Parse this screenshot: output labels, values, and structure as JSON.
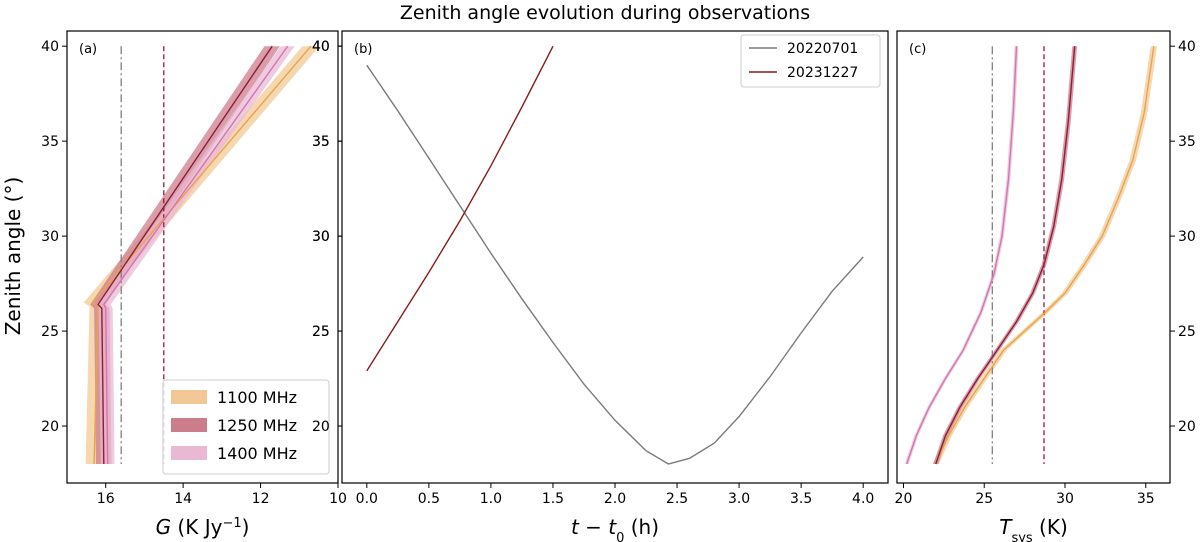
{
  "figure": {
    "title": "Zenith angle evolution during observations",
    "shared_ylabel": "Zenith angle (°)"
  },
  "chart_data": [
    {
      "panel": "(a)",
      "type": "line",
      "xlabel_html": "G (K Jy⁻¹)",
      "ylabel": "Zenith angle (°)",
      "xlim": [
        17.0,
        10.0
      ],
      "ylim": [
        17.0,
        40.8
      ],
      "xticks": [
        16,
        14,
        12,
        10
      ],
      "yticks": [
        20,
        25,
        30,
        35,
        40
      ],
      "legend": {
        "position": "lower-right",
        "entries": [
          "1100 MHz",
          "1250 MHz",
          "1400 MHz"
        ]
      },
      "series": [
        {
          "name": "1100 MHz",
          "color": "#e8a44a",
          "band_color": "#f2c996",
          "band_halfwidth": 0.22,
          "x": [
            16.3,
            16.2,
            16.35,
            10.7
          ],
          "y": [
            18.0,
            26.3,
            26.5,
            40.0
          ]
        },
        {
          "name": "1250 MHz",
          "color": "#8e1d3a",
          "band_color": "#cc7d8c",
          "band_halfwidth": 0.2,
          "x": [
            16.05,
            16.1,
            16.2,
            11.7
          ],
          "y": [
            18.0,
            26.2,
            26.4,
            40.0
          ]
        },
        {
          "name": "1400 MHz",
          "color": "#d277b0",
          "band_color": "#e9b9d4",
          "band_halfwidth": 0.18,
          "x": [
            15.95,
            16.0,
            16.05,
            11.3
          ],
          "y": [
            18.0,
            26.2,
            26.4,
            40.0
          ]
        }
      ],
      "vlines": [
        {
          "x": 15.6,
          "color": "#808080",
          "style": "dashdot"
        },
        {
          "x": 14.5,
          "color": "#8e1d3a",
          "style": "dashed"
        }
      ]
    },
    {
      "panel": "(b)",
      "type": "line",
      "xlabel_html": "t − t₀ (h)",
      "xlim": [
        -0.2,
        4.2
      ],
      "ylim": [
        17.0,
        40.8
      ],
      "xticks": [
        "0.0",
        "0.5",
        "1.0",
        "1.5",
        "2.0",
        "2.5",
        "3.0",
        "3.5",
        "4.0"
      ],
      "yticks": [
        20,
        25,
        30,
        35,
        40
      ],
      "legend": {
        "position": "top-right",
        "entries": [
          "20220701",
          "20231227"
        ]
      },
      "series": [
        {
          "name": "20220701",
          "color": "#7a7a7a",
          "x": [
            0.0,
            0.25,
            0.5,
            0.75,
            1.0,
            1.25,
            1.5,
            1.75,
            2.0,
            2.25,
            2.43,
            2.6,
            2.8,
            3.0,
            3.25,
            3.5,
            3.75,
            4.0
          ],
          "y": [
            39.0,
            36.6,
            34.1,
            31.6,
            29.1,
            26.7,
            24.4,
            22.2,
            20.3,
            18.7,
            18.0,
            18.3,
            19.1,
            20.5,
            22.6,
            24.9,
            27.1,
            28.9
          ]
        },
        {
          "name": "20231227",
          "color": "#8b1a1a",
          "x": [
            0.0,
            0.25,
            0.5,
            0.75,
            1.0,
            1.25,
            1.5
          ],
          "y": [
            22.9,
            25.5,
            28.1,
            30.8,
            33.7,
            36.8,
            40.0
          ]
        }
      ]
    },
    {
      "panel": "(c)",
      "type": "line",
      "xlabel_html": "Tₛᵧₛ (K)",
      "xlabel_main": "T",
      "xlabel_sub": "sys",
      "xlabel_unit": " (K)",
      "xlim": [
        19.6,
        36.5
      ],
      "ylim": [
        17.0,
        40.8
      ],
      "xticks": [
        20,
        25,
        30,
        35
      ],
      "yticks": [
        20,
        25,
        30,
        35,
        40
      ],
      "series": [
        {
          "name": "1100 MHz",
          "color": "#e8a44a",
          "band_color": "#f2c996",
          "band_halfwidth": 0.2,
          "x": [
            22.0,
            22.8,
            23.8,
            25.0,
            26.2,
            27.5,
            28.8,
            30.0,
            31.2,
            32.3,
            33.3,
            34.2,
            34.9,
            35.5
          ],
          "y": [
            18.0,
            19.5,
            21.0,
            22.5,
            24.0,
            25.0,
            26.0,
            27.0,
            28.5,
            30.0,
            32.0,
            34.0,
            36.5,
            40.0
          ]
        },
        {
          "name": "1250 MHz",
          "color": "#8e1d3a",
          "band_color": "#cc7d8c",
          "band_halfwidth": 0.15,
          "x": [
            22.0,
            22.6,
            23.5,
            24.6,
            25.8,
            27.0,
            28.0,
            28.7,
            29.3,
            29.8,
            30.2,
            30.6
          ],
          "y": [
            18.0,
            19.5,
            21.0,
            22.5,
            24.0,
            25.5,
            27.0,
            28.5,
            30.5,
            33.0,
            36.0,
            40.0
          ]
        },
        {
          "name": "1400 MHz",
          "color": "#d277b0",
          "band_color": "#e9b9d4",
          "band_halfwidth": 0.12,
          "x": [
            20.2,
            20.8,
            21.6,
            22.6,
            23.7,
            24.8,
            25.6,
            26.1,
            26.5,
            26.8,
            27.0
          ],
          "y": [
            18.0,
            19.5,
            21.0,
            22.5,
            24.0,
            26.0,
            28.0,
            30.0,
            33.0,
            36.5,
            40.0
          ]
        }
      ],
      "vlines": [
        {
          "x": 25.5,
          "color": "#808080",
          "style": "dashdot"
        },
        {
          "x": 28.7,
          "color": "#8e1d3a",
          "style": "dashed"
        }
      ]
    }
  ]
}
